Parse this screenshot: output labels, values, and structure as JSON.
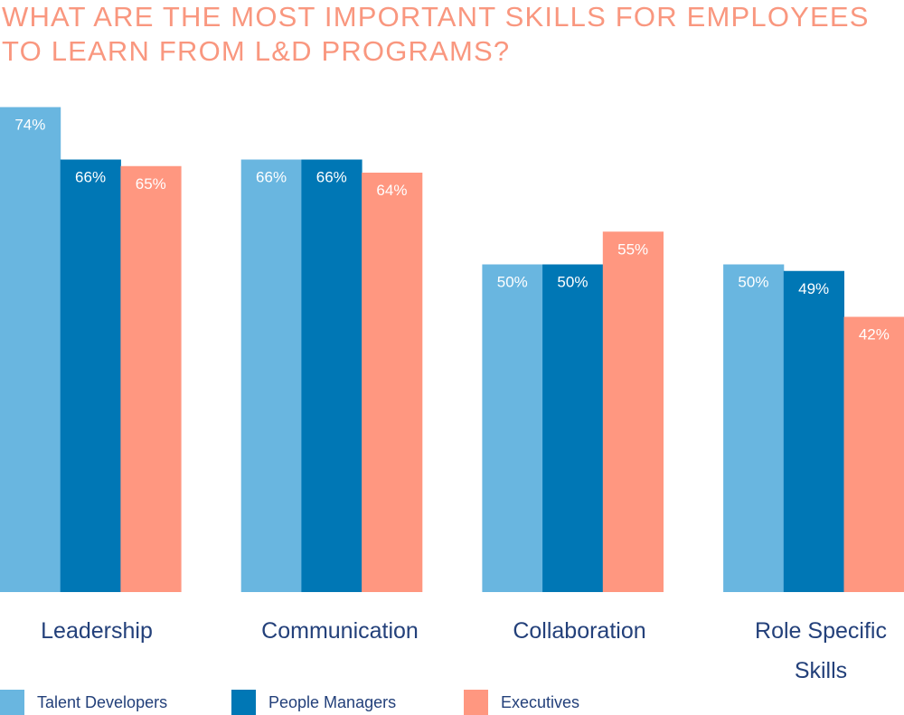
{
  "chart_data": {
    "type": "bar",
    "title": "WHAT ARE THE MOST IMPORTANT SKILLS FOR EMPLOYEES TO LEARN FROM L&D PROGRAMS?",
    "categories": [
      "Leadership",
      "Communication",
      "Collaboration",
      "Role Specific Skills"
    ],
    "series": [
      {
        "name": "Talent Developers",
        "values": [
          74,
          66,
          50,
          50
        ],
        "color": "#69B6E0"
      },
      {
        "name": "People Managers",
        "values": [
          66,
          66,
          50,
          49
        ],
        "color": "#0077B5"
      },
      {
        "name": "Executives",
        "values": [
          65,
          64,
          55,
          42
        ],
        "color": "#FF9780"
      }
    ],
    "value_format": "%",
    "ylim": [
      0,
      90
    ],
    "grid": false,
    "legend": "bottom",
    "title_color": "#F9977F",
    "label_color": "#23407A"
  }
}
